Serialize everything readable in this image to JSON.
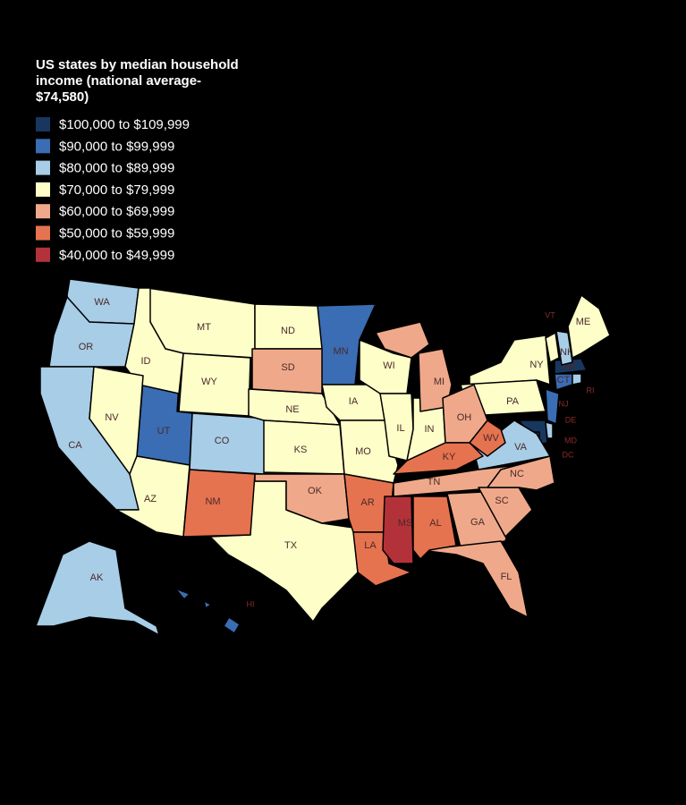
{
  "title": "US states by median household income (national average- $74,580)",
  "legend": [
    {
      "label": "$100,000 to $109,999",
      "color": "#17375e",
      "states": [
        "MD",
        "DC",
        "MA"
      ]
    },
    {
      "label": "$90,000 to $99,999",
      "color": "#3a6db3",
      "states": [
        "MN",
        "UT",
        "NJ",
        "CT",
        "HI"
      ]
    },
    {
      "label": "$80,000 to $89,999",
      "color": "#a8cde6",
      "states": [
        "WA",
        "OR",
        "CA",
        "CO",
        "AK",
        "VA",
        "NH",
        "RI",
        "DE"
      ]
    },
    {
      "label": "$70,000 to $79,999",
      "color": "#fefec8",
      "states": [
        "MT",
        "ID",
        "WY",
        "NV",
        "AZ",
        "ND",
        "NE",
        "KS",
        "TX",
        "IA",
        "MO",
        "WI",
        "IL",
        "IN",
        "NY",
        "PA",
        "VT",
        "ME"
      ]
    },
    {
      "label": "$60,000 to $69,999",
      "color": "#efa98a",
      "states": [
        "SD",
        "OK",
        "MI",
        "OH",
        "TN",
        "GA",
        "SC",
        "NC",
        "FL"
      ]
    },
    {
      "label": "$50,000 to $59,999",
      "color": "#e6734f",
      "states": [
        "NM",
        "AR",
        "LA",
        "KY",
        "WV",
        "AL"
      ]
    },
    {
      "label": "$40,000 to $49,999",
      "color": "#b3323a",
      "states": [
        "MS"
      ]
    }
  ]
}
